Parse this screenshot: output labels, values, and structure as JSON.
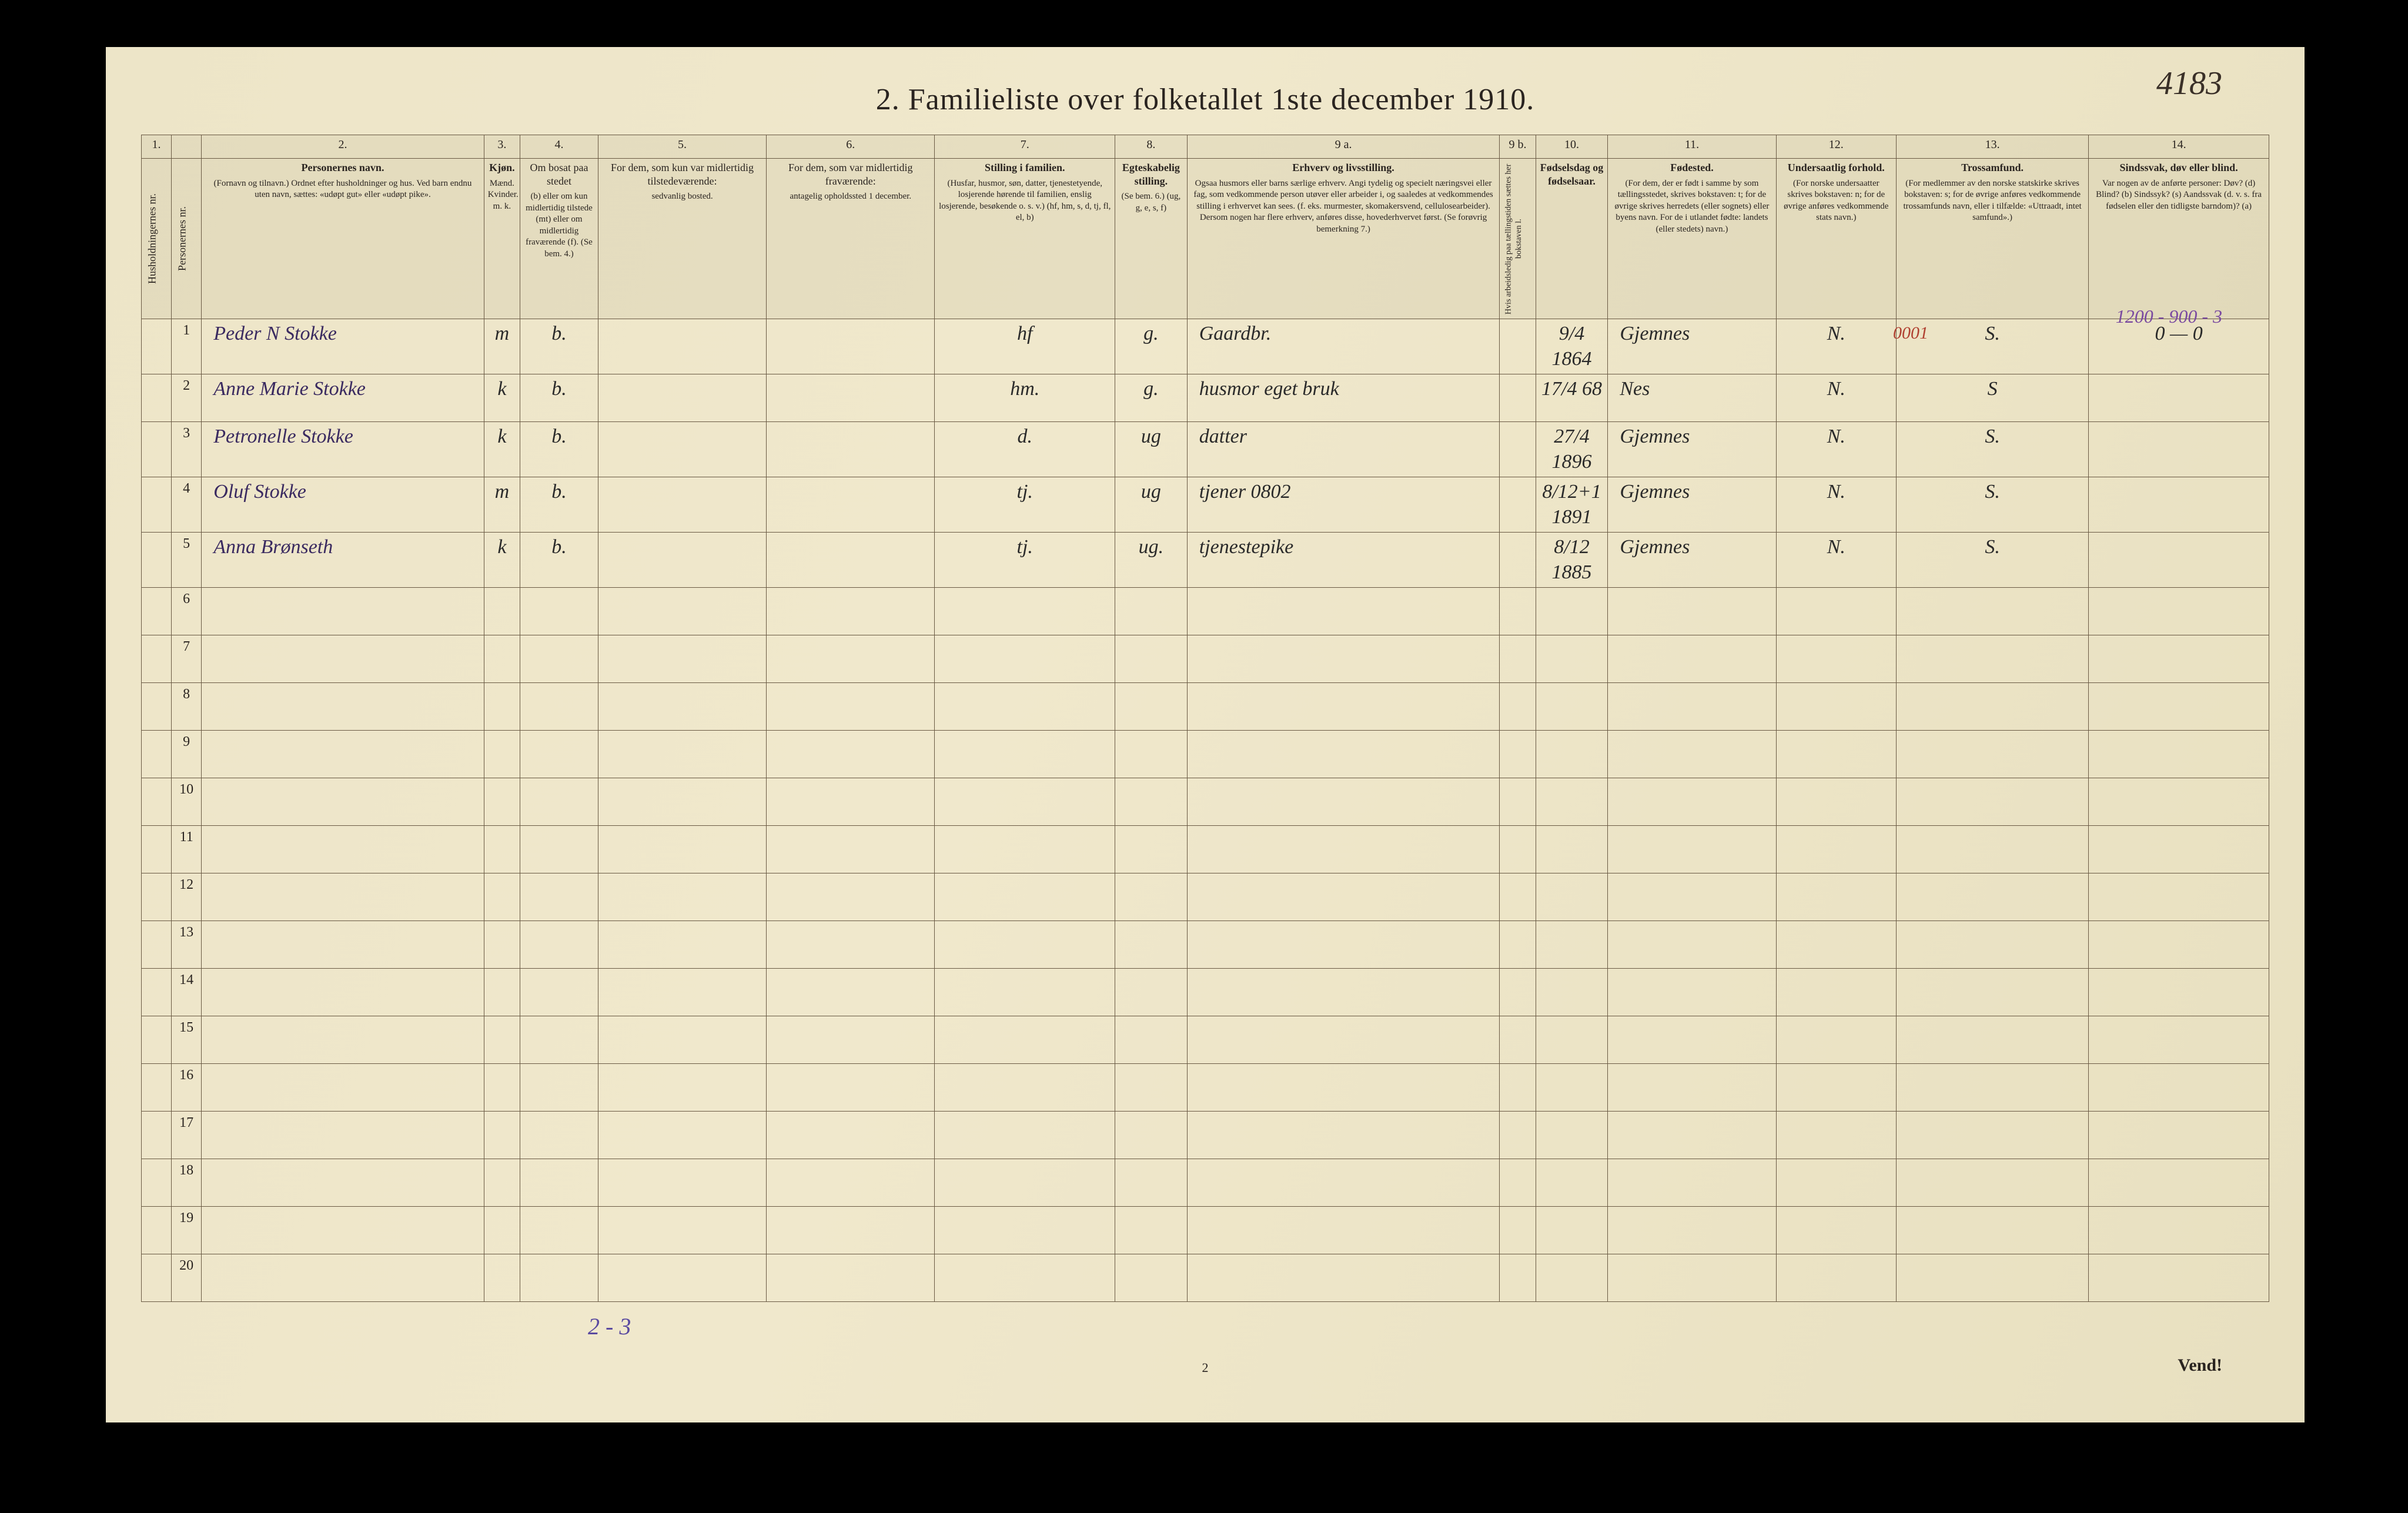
{
  "pageNumber": "2",
  "topRightNote": "4183",
  "title": "2.  Familieliste over folketallet 1ste december 1910.",
  "tallyNote": "2 - 3",
  "vend": "Vend!",
  "marginTopRight": "1200 - 900 - 3",
  "marginRed": "0001",
  "columns": {
    "1": {
      "num": "1.",
      "head": "Husholdningernes nr."
    },
    "pnr": {
      "head": "Personernes nr."
    },
    "2": {
      "num": "2.",
      "head": "Personernes navn.",
      "sub": "(Fornavn og tilnavn.)\nOrdnet efter husholdninger og hus.\nVed barn endnu uten navn, sættes: «udøpt gut» eller «udøpt pike»."
    },
    "3": {
      "num": "3.",
      "head": "Kjøn.",
      "sub": "Mænd.  Kvinder.\nm.   k."
    },
    "4": {
      "num": "4.",
      "head": "Om bosat paa stedet",
      "sub": "(b) eller om kun midlertidig tilstede (mt) eller om midlertidig fraværende (f).\n(Se bem. 4.)"
    },
    "5": {
      "num": "5.",
      "head": "For dem, som kun var midlertidig tilstedeværende:",
      "sub": "sedvanlig bosted."
    },
    "6": {
      "num": "6.",
      "head": "For dem, som var midlertidig fraværende:",
      "sub": "antagelig opholdssted 1 december."
    },
    "7": {
      "num": "7.",
      "head": "Stilling i familien.",
      "sub": "(Husfar, husmor, søn, datter, tjenestetyende, losjerende hørende til familien, enslig losjerende, besøkende o. s. v.)\n(hf, hm, s, d, tj, fl, el, b)"
    },
    "8": {
      "num": "8.",
      "head": "Egteskabelig stilling.",
      "sub": "(Se bem. 6.)\n(ug, g, e, s, f)"
    },
    "9a": {
      "num": "9 a.",
      "head": "Erhverv og livsstilling.",
      "sub": "Ogsaa husmors eller barns særlige erhverv. Angi tydelig og specielt næringsvei eller fag, som vedkommende person utøver eller arbeider i, og saaledes at vedkommendes stilling i erhvervet kan sees. (f. eks. murmester, skomakersvend, cellulosearbeider). Dersom nogen har flere erhverv, anføres disse, hovederhvervet først.\n(Se forøvrig bemerkning 7.)"
    },
    "9b": {
      "num": "9 b.",
      "head": "Hvis arbeidsledig paa tællingstiden sættes her bokstaven l."
    },
    "10": {
      "num": "10.",
      "head": "Fødselsdag og fødselsaar."
    },
    "11": {
      "num": "11.",
      "head": "Fødested.",
      "sub": "(For dem, der er født i samme by som tællingsstedet, skrives bokstaven: t; for de øvrige skrives herredets (eller sognets) eller byens navn. For de i utlandet fødte: landets (eller stedets) navn.)"
    },
    "12": {
      "num": "12.",
      "head": "Undersaatlig forhold.",
      "sub": "(For norske undersaatter skrives bokstaven: n; for de øvrige anføres vedkommende stats navn.)"
    },
    "13": {
      "num": "13.",
      "head": "Trossamfund.",
      "sub": "(For medlemmer av den norske statskirke skrives bokstaven: s; for de øvrige anføres vedkommende trossamfunds navn, eller i tilfælde: «Uttraadt, intet samfund».)"
    },
    "14": {
      "num": "14.",
      "head": "Sindssvak, døv eller blind.",
      "sub": "Var nogen av de anførte personer:\nDøv?     (d)\nBlind?   (b)\nSindssyk? (s)\nAandssvak (d. v. s. fra fødselen eller den tidligste barndom)?  (a)"
    }
  },
  "rows": [
    {
      "n": "1",
      "name": "Peder N Stokke",
      "sex": "m",
      "bosat": "b.",
      "c5": "",
      "c6": "",
      "stil": "hf",
      "egt": "g.",
      "erh": "Gaardbr.",
      "fdag": "9/4 1864",
      "fsted": "Gjemnes",
      "und": "N.",
      "tro": "S.",
      "sind": "0 — 0"
    },
    {
      "n": "2",
      "name": "Anne Marie Stokke",
      "sex": "k",
      "bosat": "b.",
      "c5": "",
      "c6": "",
      "stil": "hm.",
      "egt": "g.",
      "erh": "husmor  eget bruk",
      "fdag": "17/4 68",
      "fsted": "Nes",
      "und": "N.",
      "tro": "S",
      "sind": ""
    },
    {
      "n": "3",
      "name": "Petronelle Stokke",
      "sex": "k",
      "bosat": "b.",
      "c5": "",
      "c6": "",
      "stil": "d.",
      "egt": "ug",
      "erh": "datter",
      "fdag": "27/4 1896",
      "fsted": "Gjemnes",
      "und": "N.",
      "tro": "S.",
      "sind": ""
    },
    {
      "n": "4",
      "name": "Oluf Stokke",
      "sex": "m",
      "bosat": "b.",
      "c5": "",
      "c6": "",
      "stil": "tj.",
      "egt": "ug",
      "erh": "tjener   0802",
      "fdag": "8/12+1 1891",
      "fsted": "Gjemnes",
      "und": "N.",
      "tro": "S.",
      "sind": ""
    },
    {
      "n": "5",
      "name": "Anna Brønseth",
      "sex": "k",
      "bosat": "b.",
      "c5": "",
      "c6": "",
      "stil": "tj.",
      "egt": "ug.",
      "erh": "tjenestepike",
      "fdag": "8/12 1885",
      "fsted": "Gjemnes",
      "und": "N.",
      "tro": "S.",
      "sind": ""
    }
  ],
  "emptyRows": [
    "6",
    "7",
    "8",
    "9",
    "10",
    "11",
    "12",
    "13",
    "14",
    "15",
    "16",
    "17",
    "18",
    "19",
    "20"
  ]
}
